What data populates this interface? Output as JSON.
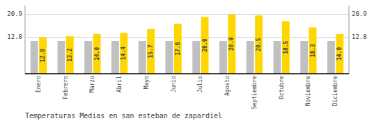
{
  "chart_data": {
    "type": "bar",
    "title": "Temperaturas Medias en san esteban de zapardiel",
    "categories": [
      "Enero",
      "Febrero",
      "Marzo",
      "Abril",
      "Mayo",
      "Junio",
      "Julio",
      "Agosto",
      "Septiembre",
      "Octubre",
      "Noviembre",
      "Diciembre"
    ],
    "series": [
      {
        "color": "#C0C0C0",
        "values": [
          11.5,
          11.5,
          11.5,
          11.5,
          11.5,
          11.5,
          11.5,
          11.5,
          11.5,
          11.5,
          11.5,
          11.5
        ]
      },
      {
        "color": "#FFD700",
        "values": [
          12.8,
          13.2,
          14.0,
          14.4,
          15.7,
          17.6,
          20.0,
          20.9,
          20.5,
          18.5,
          16.3,
          14.0
        ],
        "data_labels": true,
        "value_labels": [
          "12.8",
          "13.2",
          "14.0",
          "14.4",
          "15.7",
          "17.6",
          "20.0",
          "20.9",
          "20.5",
          "18.5",
          "16.3",
          "14.0"
        ]
      }
    ],
    "ylim": [
      0,
      24.0
    ],
    "yticks": [
      12.8,
      20.9
    ],
    "y2lim": [
      0,
      24.0
    ],
    "y2ticks": [
      12.8,
      20.9
    ],
    "grid": true
  }
}
